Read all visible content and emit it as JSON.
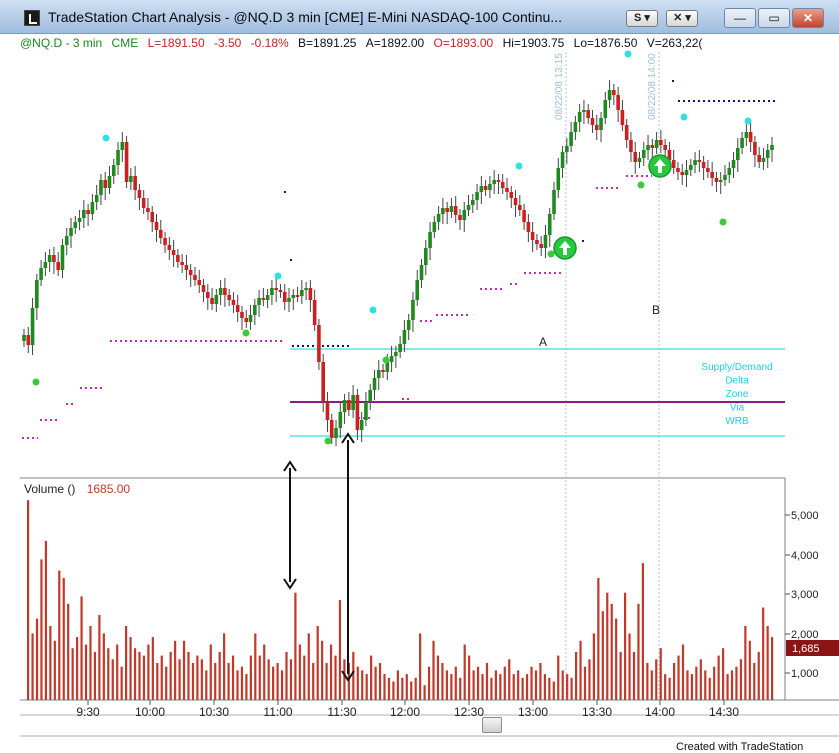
{
  "window": {
    "title": "TradeStation Chart Analysis - @NQ.D  3 min  [CME] E-Mini NASDAQ-100 Continu...",
    "style_btn": "S ▾",
    "tools_btn": "✕ ▾",
    "minimize": "—",
    "maximize": "▭",
    "close": "✕"
  },
  "infobar": {
    "symbol": "@NQ.D - 3 min",
    "exchange": "CME",
    "last": "L=1891.50",
    "change": "-3.50",
    "pct": "-0.18%",
    "bid": "B=1891.25",
    "ask": "A=1892.00",
    "open": "O=1893.00",
    "high": "Hi=1903.75",
    "low": "Lo=1876.50",
    "volume": "V=263,22("
  },
  "colors": {
    "up": "#1e8a1e",
    "down": "#cc1f1f",
    "volume": "#c0392b",
    "cyan": "#35e0e0",
    "magenta_dots": "#c02ac0",
    "navy_dots": "#0a1a7a",
    "purple_line": "#8a1a8a",
    "zone_text": "#20d0e0",
    "signal_green": "#27c93f"
  },
  "annotations": {
    "label_a": "A",
    "label_b": "B",
    "zone_lines": [
      "Supply/Demand",
      "Delta",
      "Zone",
      "Via",
      "WRB"
    ],
    "vline_1": "08/22/08 13:15",
    "vline_2": "08/22/08 14:00"
  },
  "volume_panel": {
    "title": "Volume ()",
    "value": "1685.00",
    "axis_ticks": [
      "5,000",
      "4,000",
      "3,000",
      "2,000",
      "1,000"
    ],
    "current_badge": "1,685"
  },
  "time_axis": [
    "9:30",
    "10:00",
    "10:30",
    "11:00",
    "11:30",
    "12:00",
    "12:30",
    "13:00",
    "13:30",
    "14:00",
    "14:30"
  ],
  "credit": "Created with TradeStation"
}
